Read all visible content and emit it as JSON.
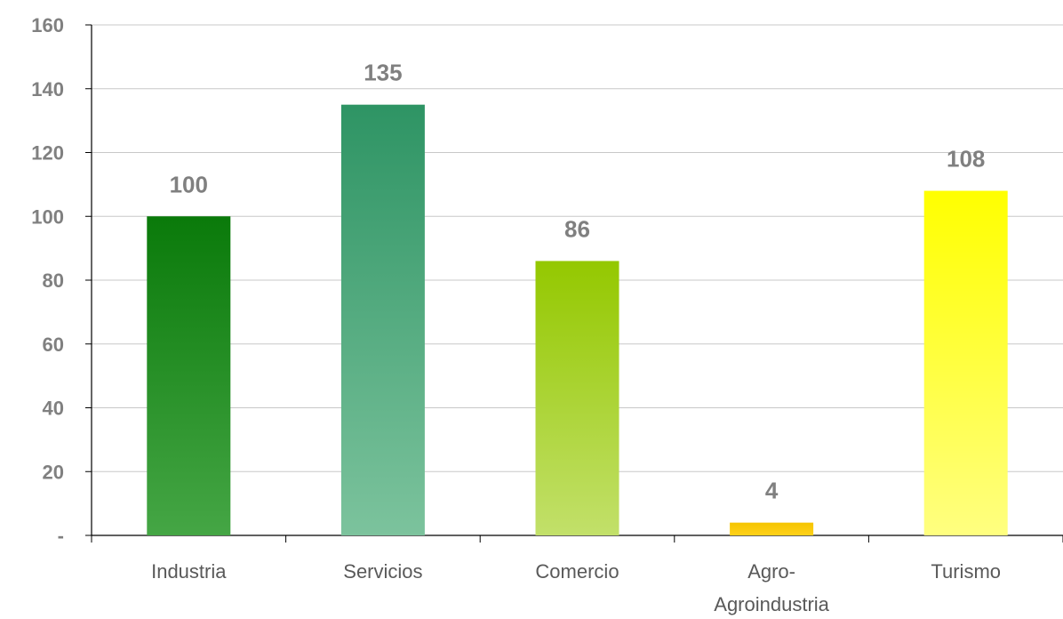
{
  "chart_data": {
    "type": "bar",
    "title": "",
    "xlabel": "",
    "ylabel": "",
    "ylim": [
      0,
      160
    ],
    "yticks": [
      0,
      20,
      40,
      60,
      80,
      100,
      120,
      140,
      160
    ],
    "ytick_labels": [
      "-",
      "20",
      "40",
      "60",
      "80",
      "100",
      "120",
      "140",
      "160"
    ],
    "grid": true,
    "categories": [
      [
        "Industria"
      ],
      [
        "Servicios"
      ],
      [
        "Comercio"
      ],
      [
        "Agro-",
        "Agroindustria"
      ],
      [
        "Turismo"
      ]
    ],
    "values": [
      100,
      135,
      86,
      4,
      108
    ],
    "data_labels": [
      "100",
      "135",
      "86",
      "4",
      "108"
    ],
    "bar_colors": [
      [
        "#0a7a0a",
        "#45a645"
      ],
      [
        "#2e9464",
        "#7cc39d"
      ],
      [
        "#94c800",
        "#c2e06a"
      ],
      [
        "#f5c400",
        "#ffd11a"
      ],
      [
        "#ffff00",
        "#ffff80"
      ]
    ]
  }
}
